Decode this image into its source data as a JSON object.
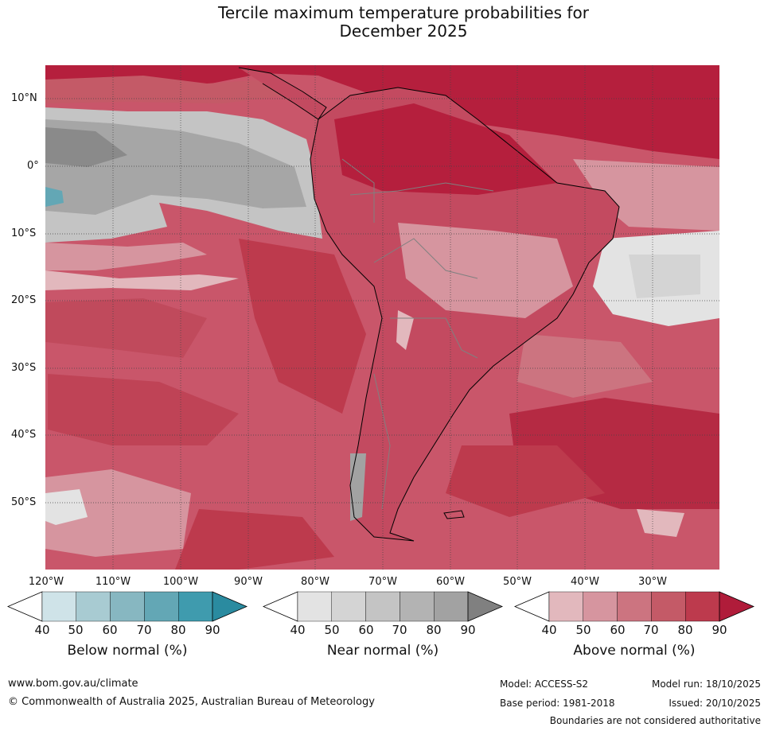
{
  "title": {
    "line1": "Tercile maximum temperature probabilities for",
    "line2": "December 2025"
  },
  "map": {
    "region": "South America",
    "lat_labels": [
      "10°N",
      "0°",
      "10°S",
      "20°S",
      "30°S",
      "40°S",
      "50°S"
    ],
    "lon_labels": [
      "120°W",
      "110°W",
      "100°W",
      "90°W",
      "80°W",
      "70°W",
      "60°W",
      "50°W",
      "40°W",
      "30°W"
    ],
    "ocean_base_color": "#c9566a",
    "land_base_color": "#c34a60"
  },
  "legends": [
    {
      "title": "Below normal (%)",
      "ticks": [
        "40",
        "50",
        "60",
        "70",
        "80",
        "90"
      ],
      "colors": [
        "#ffffff",
        "#cfe3e8",
        "#a8cbd2",
        "#87b7c1",
        "#63a7b5",
        "#3f9bae",
        "#2a8ba0"
      ]
    },
    {
      "title": "Near normal (%)",
      "ticks": [
        "40",
        "50",
        "60",
        "70",
        "80",
        "90"
      ],
      "colors": [
        "#ffffff",
        "#e3e3e3",
        "#d4d4d4",
        "#c4c4c4",
        "#b3b3b3",
        "#a2a2a2",
        "#808080"
      ]
    },
    {
      "title": "Above normal (%)",
      "ticks": [
        "40",
        "50",
        "60",
        "70",
        "80",
        "90"
      ],
      "colors": [
        "#ffffff",
        "#e2b8bd",
        "#d6959f",
        "#cc7480",
        "#c45a67",
        "#bd3a4d",
        "#b01c3a"
      ]
    }
  ],
  "footer": {
    "website": "www.bom.gov.au/climate",
    "copyright": "© Commonwealth of Australia 2025, Australian Bureau of Meteorology",
    "model": "Model: ACCESS-S2",
    "base_period": "Base period: 1981-2018",
    "model_run": "Model run: 18/10/2025",
    "issued": "Issued: 20/10/2025",
    "disclaimer": "Boundaries are not considered authoritative"
  }
}
